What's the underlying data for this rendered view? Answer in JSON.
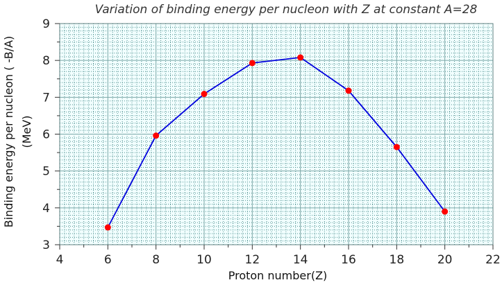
{
  "chart_data": {
    "type": "line",
    "title": "Variation of binding energy per nucleon with Z at constant A=28",
    "xlabel": "Proton  number(Z)",
    "ylabel_line1": "Binding  energy  per  nucleon  ( -B/A)",
    "ylabel_line2": "(MeV)",
    "xlim": [
      4,
      22
    ],
    "ylim": [
      3,
      9
    ],
    "xticks": [
      "4",
      "6",
      "8",
      "10",
      "12",
      "14",
      "16",
      "18",
      "20",
      "22"
    ],
    "yticks": [
      "3",
      "4",
      "5",
      "6",
      "7",
      "8",
      "9"
    ],
    "grid": true,
    "legend": "none",
    "series": [
      {
        "x": [
          6,
          8,
          10,
          12,
          14,
          16,
          18,
          20
        ],
        "y": [
          3.47,
          5.96,
          7.09,
          7.93,
          8.08,
          7.18,
          5.65,
          3.9
        ]
      }
    ],
    "colors": {
      "line": "#0000dd",
      "marker": "#ff0000",
      "plot_background": "#f2ffff",
      "major_grid": "#7aa6a6",
      "minor_grid": "#4f8f8f"
    }
  }
}
